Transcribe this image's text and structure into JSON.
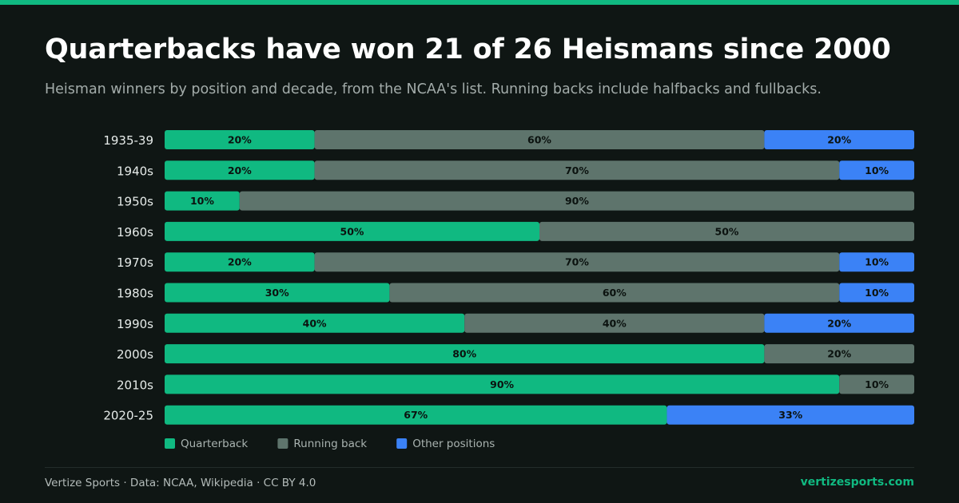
{
  "header": {
    "title": "Quarterbacks have won 21 of 26 Heismans since 2000",
    "subtitle": "Heisman winners by position and decade, from the NCAA's list. Running backs include halfbacks and fullbacks."
  },
  "chart_data": {
    "type": "bar",
    "orientation": "horizontal",
    "stacked": true,
    "percent": true,
    "categories": [
      "1935-39",
      "1940s",
      "1950s",
      "1960s",
      "1970s",
      "1980s",
      "1990s",
      "2000s",
      "2010s",
      "2020-25"
    ],
    "series": [
      {
        "name": "Quarterback",
        "color": "#10b981",
        "values": [
          20,
          20,
          10,
          50,
          20,
          30,
          40,
          80,
          90,
          67
        ]
      },
      {
        "name": "Running back",
        "color": "#5e746c",
        "values": [
          60,
          70,
          90,
          50,
          70,
          60,
          40,
          20,
          10,
          0
        ]
      },
      {
        "name": "Other positions",
        "color": "#3b82f6",
        "values": [
          20,
          10,
          0,
          0,
          10,
          10,
          20,
          0,
          0,
          33
        ]
      }
    ],
    "xlim": [
      0,
      100
    ],
    "data_labels": "percent",
    "legend": "bottom-left",
    "grid": false
  },
  "footer": {
    "source": "Vertize Sports · Data: NCAA, Wikipedia · CC BY 4.0",
    "site": "vertizesports.com"
  }
}
